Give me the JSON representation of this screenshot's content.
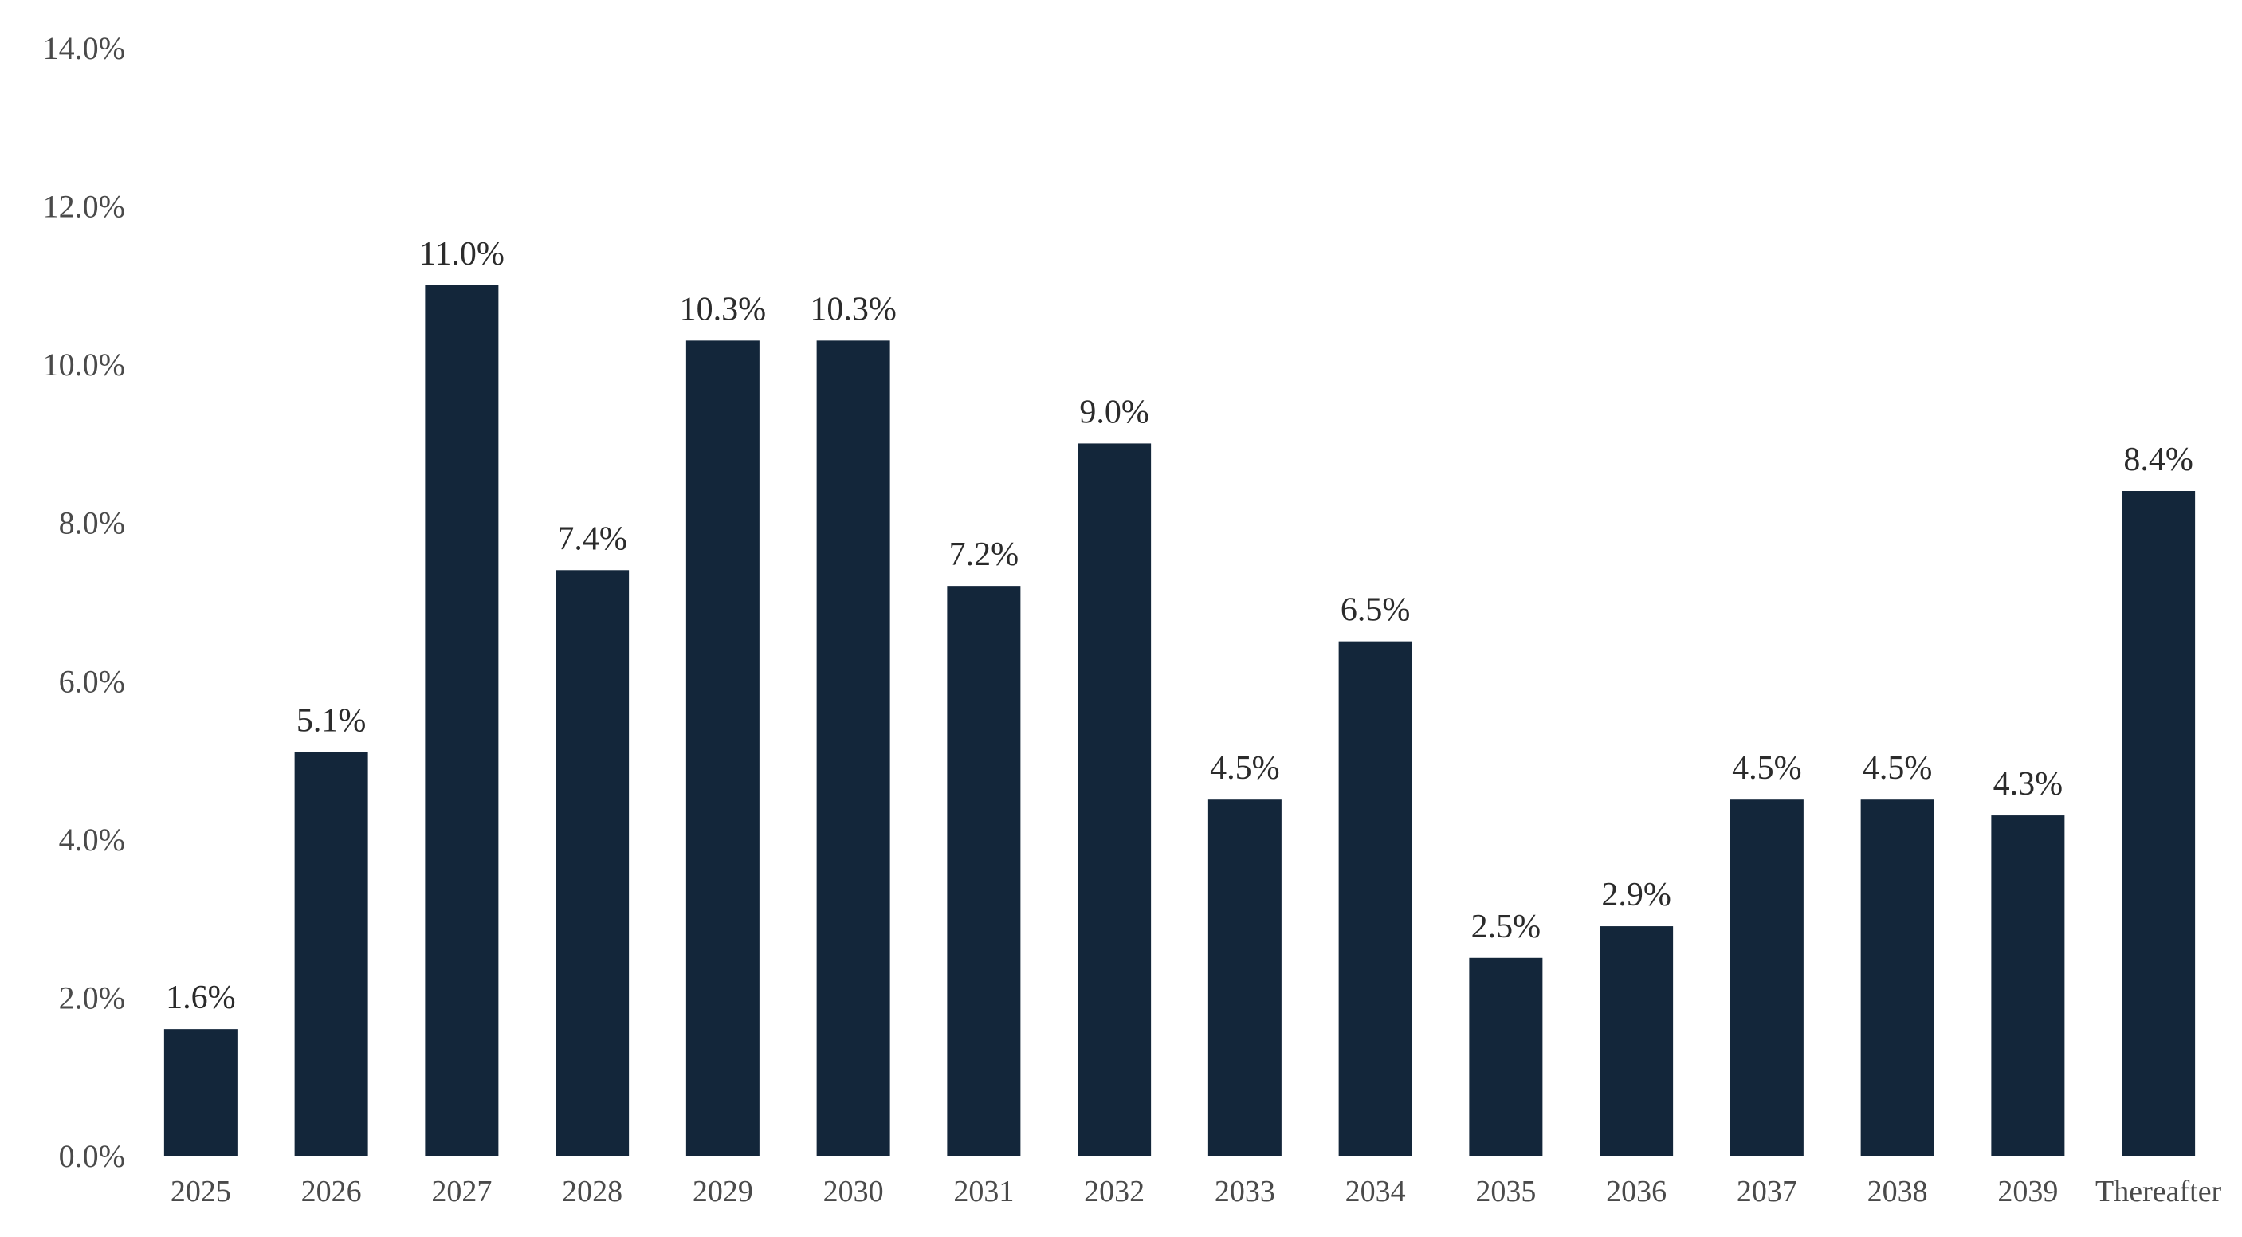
{
  "chart_data": {
    "type": "bar",
    "title": "",
    "xlabel": "",
    "ylabel": "",
    "categories": [
      "2025",
      "2026",
      "2027",
      "2028",
      "2029",
      "2030",
      "2031",
      "2032",
      "2033",
      "2034",
      "2035",
      "2036",
      "2037",
      "2038",
      "2039",
      "Thereafter"
    ],
    "values": [
      1.6,
      5.1,
      11.0,
      7.4,
      10.3,
      10.3,
      7.2,
      9.0,
      4.5,
      6.5,
      2.5,
      2.9,
      4.5,
      4.5,
      4.3,
      8.4
    ],
    "data_labels": [
      "1.6%",
      "5.1%",
      "11.0%",
      "7.4%",
      "10.3%",
      "10.3%",
      "7.2%",
      "9.0%",
      "4.5%",
      "6.5%",
      "2.5%",
      "2.9%",
      "4.5%",
      "4.5%",
      "4.3%",
      "8.4%"
    ],
    "ylim": [
      0,
      14
    ],
    "y_ticks": [
      0,
      2,
      4,
      6,
      8,
      10,
      12,
      14
    ],
    "y_tick_labels": [
      "0.0%",
      "2.0%",
      "4.0%",
      "6.0%",
      "8.0%",
      "10.0%",
      "12.0%",
      "14.0%"
    ],
    "grid": false,
    "legend": "none",
    "bar_color": "#13263a"
  }
}
